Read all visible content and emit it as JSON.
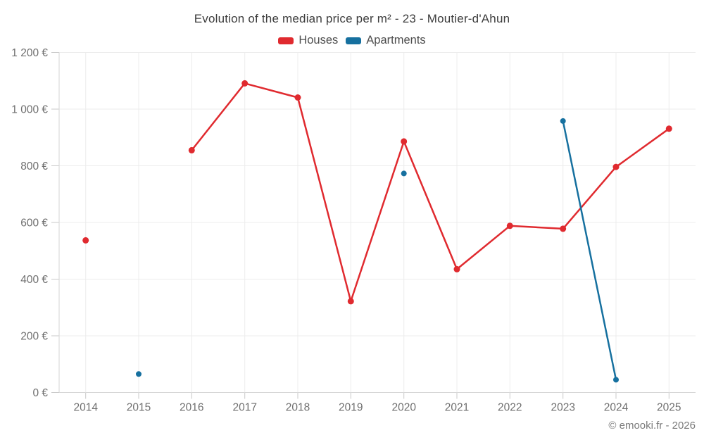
{
  "header": {
    "title": "Evolution of the median price per m² - 23 - Moutier-d'Ahun"
  },
  "legend": {
    "items": [
      {
        "label": "Houses",
        "color": "#e02a2f"
      },
      {
        "label": "Apartments",
        "color": "#16709f"
      }
    ]
  },
  "footer": {
    "credit": "© emooki.fr - 2026"
  },
  "theme": {
    "grid_color": "#ececec",
    "axis_color": "#d6d6d6",
    "tick_color": "#c9c9c9",
    "axis_text_color": "#6f6f6f",
    "background": "#ffffff"
  },
  "chart_data": {
    "type": "line",
    "title": "Evolution of the median price per m² - 23 - Moutier-d'Ahun",
    "categories": [
      "2014",
      "2015",
      "2016",
      "2017",
      "2018",
      "2019",
      "2020",
      "2021",
      "2022",
      "2023",
      "2024",
      "2025"
    ],
    "series": [
      {
        "name": "Houses",
        "color": "#e02a2f",
        "point_radius": 4.5,
        "values": [
          537,
          null,
          855,
          1091,
          1041,
          322,
          886,
          435,
          588,
          578,
          796,
          931
        ]
      },
      {
        "name": "Apartments",
        "color": "#16709f",
        "point_radius": 4,
        "values": [
          null,
          65,
          null,
          null,
          null,
          null,
          773,
          null,
          null,
          958,
          45,
          null
        ]
      }
    ],
    "xlabel": "",
    "ylabel": "",
    "unit": "€",
    "ylim": [
      0,
      1200
    ],
    "ytick_step": 200,
    "ytick_labels": [
      "0 €",
      "200 €",
      "400 €",
      "600 €",
      "800 €",
      "1 000 €",
      "1 200 €"
    ],
    "grid": true,
    "legend_position": "top",
    "connect_nulls": false
  }
}
